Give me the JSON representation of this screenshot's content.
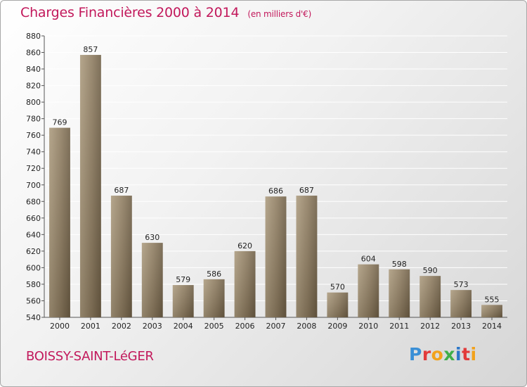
{
  "header": {
    "title": "Charges Financières 2000 à 2014",
    "unit": "(en milliers d'€)"
  },
  "footer": {
    "place": "BOISSY-SAINT-LéGER",
    "logo": "Proxiti",
    "logo_colors": [
      "#3a8fd6",
      "#e23b3b",
      "#f2a21c",
      "#3fae49",
      "#2b76c8",
      "#e23b3b",
      "#f2a21c"
    ]
  },
  "colors": {
    "bar": "#8d7b5f",
    "bar_light": "#ab9a7d",
    "bar_dark": "#6e5e45",
    "grid": "#ffffff",
    "title": "#c2185b"
  },
  "chart_data": {
    "type": "bar",
    "categories": [
      "2000",
      "2001",
      "2002",
      "2003",
      "2004",
      "2005",
      "2006",
      "2007",
      "2008",
      "2009",
      "2010",
      "2011",
      "2012",
      "2013",
      "2014"
    ],
    "values": [
      769,
      857,
      687,
      630,
      579,
      586,
      620,
      686,
      687,
      570,
      604,
      598,
      590,
      573,
      555
    ],
    "title": "Charges Financières 2000 à 2014",
    "ylim": [
      540,
      880
    ],
    "yticks": [
      540,
      560,
      580,
      600,
      620,
      640,
      660,
      680,
      700,
      720,
      740,
      760,
      780,
      800,
      820,
      840,
      860,
      880
    ],
    "grid": true
  }
}
